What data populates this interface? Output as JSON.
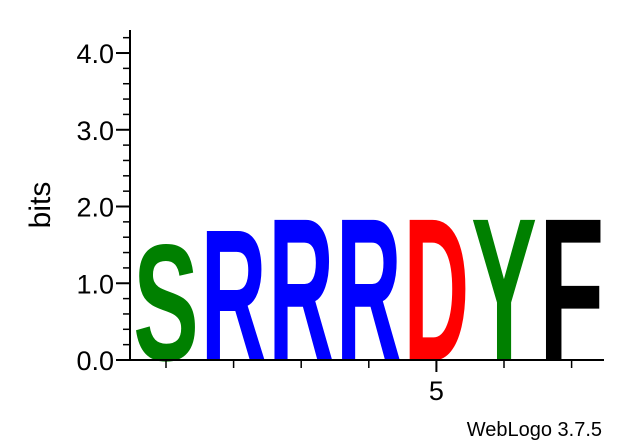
{
  "chart_data": {
    "type": "sequence-logo",
    "ylabel": "bits",
    "ylim": [
      0,
      4.3
    ],
    "y_ticks": [
      "0.0",
      "1.0",
      "2.0",
      "3.0",
      "4.0"
    ],
    "x_tick_labels": [
      {
        "position": 5,
        "label": "5"
      }
    ],
    "positions": [
      {
        "index": 1,
        "letter": "S",
        "bits": 1.55,
        "color": "#008000"
      },
      {
        "index": 2,
        "letter": "R",
        "bits": 1.75,
        "color": "#0000ff"
      },
      {
        "index": 3,
        "letter": "R",
        "bits": 1.9,
        "color": "#0000ff"
      },
      {
        "index": 4,
        "letter": "R",
        "bits": 1.9,
        "color": "#0000ff"
      },
      {
        "index": 5,
        "letter": "D",
        "bits": 1.9,
        "color": "#ff0000"
      },
      {
        "index": 6,
        "letter": "Y",
        "bits": 1.9,
        "color": "#008000"
      },
      {
        "index": 7,
        "letter": "F",
        "bits": 1.9,
        "color": "#000000"
      }
    ]
  },
  "credit": "WebLogo 3.7.5"
}
